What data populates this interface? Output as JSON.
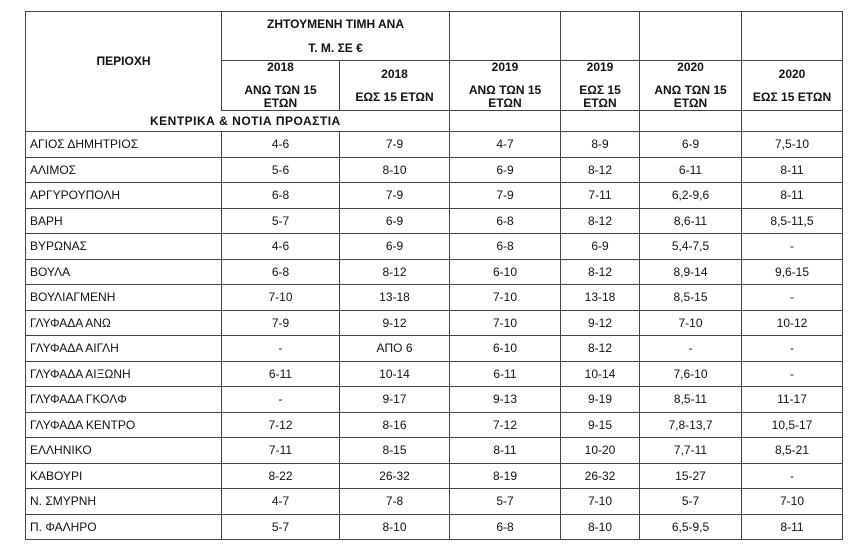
{
  "header": {
    "region_label": "ΠΕΡΙΟΧΗ",
    "price_title_1": "ΖΗΤΟΥΜΕΝΗ ΤΙΜΗ ΑΝΑ",
    "price_title_2": "Τ. Μ. ΣΕ €",
    "years": [
      "2018",
      "2018",
      "2019",
      "2019",
      "2020",
      "2020"
    ],
    "age_groups": [
      [
        "ΑΝΩ ΤΩΝ 15",
        "ΕΤΩΝ"
      ],
      [
        "ΕΩΣ 15 ΕΤΩΝ"
      ],
      [
        "ΑΝΩ ΤΩΝ 15",
        "ΕΤΩΝ"
      ],
      [
        "ΕΩΣ 15",
        "ΕΤΩΝ"
      ],
      [
        "ΑΝΩ ΤΩΝ 15",
        "ΕΤΩΝ"
      ],
      [
        "ΕΩΣ 15 ΕΤΩΝ"
      ]
    ]
  },
  "section_title": "ΚΕΝΤΡΙΚΑ & ΝΟΤΙΑ ΠΡΟΑΣΤΙΑ",
  "rows": [
    {
      "region": "ΑΓΙΟΣ ΔΗΜΗΤΡΙΟΣ",
      "values": [
        "4-6",
        "7-9",
        "4-7",
        "8-9",
        "6-9",
        "7,5-10"
      ]
    },
    {
      "region": "ΑΛΙΜΟΣ",
      "values": [
        "5-6",
        "8-10",
        "6-9",
        "8-12",
        "6-11",
        "8-11"
      ]
    },
    {
      "region": "ΑΡΓΥΡΟΥΠΟΛΗ",
      "values": [
        "6-8",
        "7-9",
        "7-9",
        "7-11",
        "6,2-9,6",
        "8-11"
      ]
    },
    {
      "region": "ΒΑΡΗ",
      "values": [
        "5-7",
        "6-9",
        "6-8",
        "8-12",
        "8,6-11",
        "8,5-11,5"
      ]
    },
    {
      "region": "ΒΥΡΩΝΑΣ",
      "values": [
        "4-6",
        "6-9",
        "6-8",
        "6-9",
        "5,4-7,5",
        "-"
      ]
    },
    {
      "region": "ΒΟΥΛΑ",
      "values": [
        "6-8",
        "8-12",
        "6-10",
        "8-12",
        "8,9-14",
        "9,6-15"
      ]
    },
    {
      "region": "ΒΟΥΛΙΑΓΜΕΝΗ",
      "values": [
        "7-10",
        "13-18",
        "7-10",
        "13-18",
        "8,5-15",
        "-"
      ]
    },
    {
      "region": "ΓΛΥΦΑΔΑ ΑΝΩ",
      "values": [
        "7-9",
        "9-12",
        "7-10",
        "9-12",
        "7-10",
        "10-12"
      ]
    },
    {
      "region": "ΓΛΥΦΑΔΑ ΑΙΓΛΗ",
      "values": [
        "-",
        "ΑΠΟ 6",
        "6-10",
        "8-12",
        "-",
        "-"
      ]
    },
    {
      "region": "ΓΛΥΦΑΔΑ ΑΙΞΩΝΗ",
      "values": [
        "6-11",
        "10-14",
        "6-11",
        "10-14",
        "7,6-10",
        "-"
      ]
    },
    {
      "region": "ΓΛΥΦΑΔΑ ΓΚΟΛΦ",
      "values": [
        "-",
        "9-17",
        "9-13",
        "9-19",
        "8,5-11",
        "11-17"
      ]
    },
    {
      "region": "ΓΛΥΦΑΔΑ ΚΕΝΤΡΟ",
      "values": [
        "7-12",
        "8-16",
        "7-12",
        "9-15",
        "7,8-13,7",
        "10,5-17"
      ]
    },
    {
      "region": "ΕΛΛΗΝΙΚΟ",
      "values": [
        "7-11",
        "8-15",
        "8-11",
        "10-20",
        "7,7-11",
        "8,5-21"
      ]
    },
    {
      "region": "ΚΑΒΟΥΡΙ",
      "values": [
        "8-22",
        "26-32",
        "8-19",
        "26-32",
        "15-27",
        "-"
      ]
    },
    {
      "region": "Ν. ΣΜΥΡΝΗ",
      "values": [
        "4-7",
        "7-8",
        "5-7",
        "7-10",
        "5-7",
        "7-10"
      ]
    },
    {
      "region": "Π. ΦΑΛΗΡΟ",
      "values": [
        "5-7",
        "8-10",
        "6-8",
        "8-10",
        "6,5-9,5",
        "8-11"
      ]
    }
  ]
}
